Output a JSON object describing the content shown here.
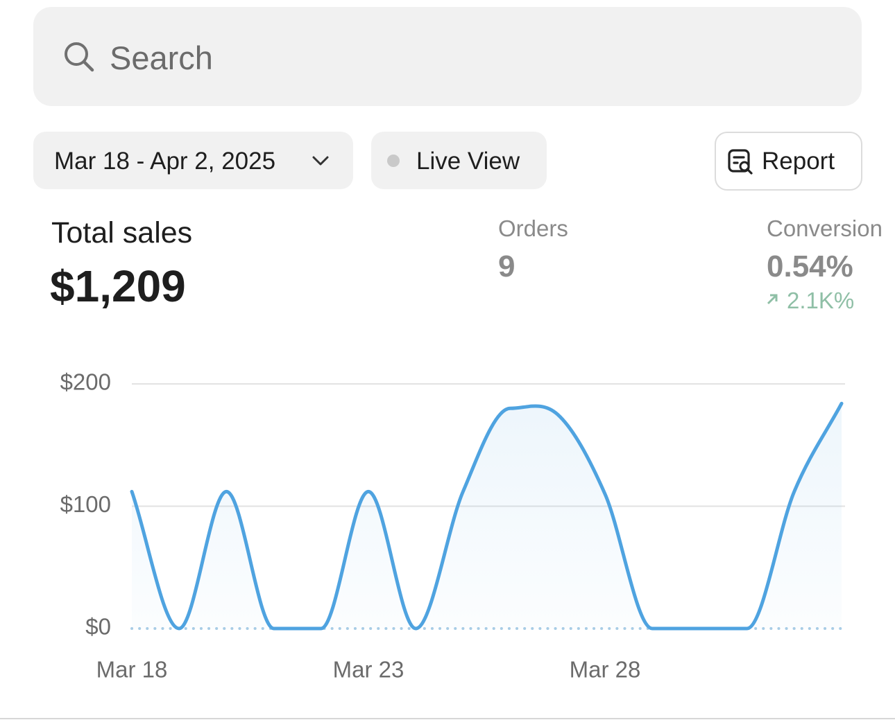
{
  "search": {
    "placeholder": "Search"
  },
  "filters": {
    "date_range": "Mar 18 - Apr 2, 2025",
    "live_view": "Live View",
    "report": "Report"
  },
  "metrics": {
    "total_sales": {
      "label": "Total sales",
      "value": "$1,209"
    },
    "orders": {
      "label": "Orders",
      "value": "9"
    },
    "conversion": {
      "label": "Conversion",
      "value": "0.54%",
      "change": "2.1K%"
    }
  },
  "chart_data": {
    "type": "line",
    "categories": [
      "Mar 18",
      null,
      null,
      null,
      null,
      "Mar 23",
      null,
      null,
      null,
      null,
      "Mar 28",
      null,
      null,
      null,
      null,
      null
    ],
    "values": [
      112,
      0,
      112,
      0,
      0,
      112,
      0,
      112,
      180,
      175,
      110,
      0,
      0,
      0,
      112,
      184
    ],
    "color": "#4fa3e0",
    "ylim": [
      0,
      200
    ],
    "yticks": [
      {
        "value": 0,
        "label": "$0"
      },
      {
        "value": 100,
        "label": "$100"
      },
      {
        "value": 200,
        "label": "$200"
      }
    ],
    "grid": true
  }
}
